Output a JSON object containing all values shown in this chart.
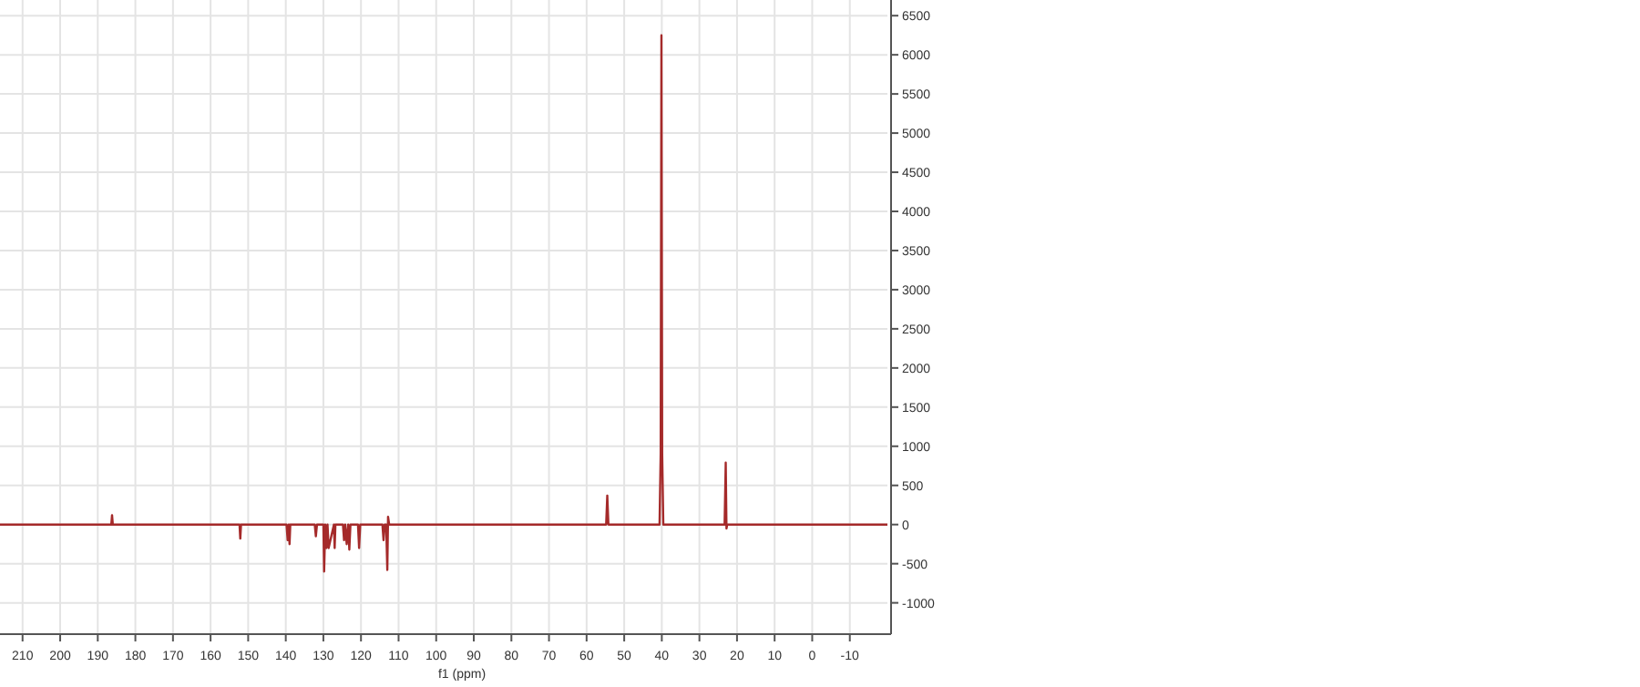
{
  "chart_data": {
    "type": "line",
    "xlabel": "f1 (ppm)",
    "xlim": [
      216,
      -20
    ],
    "ylim": [
      -1400,
      6700
    ],
    "xticks": [
      210,
      200,
      190,
      180,
      170,
      160,
      150,
      140,
      130,
      120,
      110,
      100,
      90,
      80,
      70,
      60,
      50,
      40,
      30,
      20,
      10,
      0,
      -10
    ],
    "yticks": [
      -1000,
      -500,
      0,
      500,
      1000,
      1500,
      2000,
      2500,
      3000,
      3500,
      4000,
      4500,
      5000,
      5500,
      6000,
      6500
    ],
    "grid": true,
    "marker": "none",
    "line_style": "solid",
    "series": [
      {
        "color": "#a52a2a",
        "x": [
          216,
          186.4,
          186.2,
          186.0,
          152.3,
          152.1,
          151.9,
          139.8,
          139.5,
          139.2,
          139.0,
          138.8,
          132.3,
          132.0,
          131.7,
          130.0,
          129.8,
          129.5,
          129.2,
          128.9,
          128.6,
          127.2,
          127.0,
          126.8,
          124.8,
          124.5,
          124.2,
          123.8,
          123.4,
          123.1,
          122.8,
          120.8,
          120.5,
          120.2,
          114.3,
          114.0,
          113.7,
          113.3,
          113.0,
          112.8,
          112.5,
          54.8,
          54.5,
          54.2,
          40.6,
          40.3,
          40.1,
          39.9,
          39.6,
          39.3,
          23.3,
          23.0,
          22.8,
          22.6,
          -20
        ],
        "values": [
          0,
          0,
          120,
          0,
          0,
          -180,
          0,
          0,
          -200,
          0,
          -250,
          0,
          0,
          -150,
          0,
          0,
          -600,
          0,
          -300,
          0,
          -300,
          0,
          -300,
          0,
          0,
          -200,
          0,
          -250,
          0,
          -320,
          0,
          0,
          -300,
          0,
          0,
          -200,
          0,
          0,
          -580,
          100,
          0,
          0,
          370,
          0,
          0,
          900,
          6250,
          900,
          0,
          0,
          0,
          790,
          -50,
          0,
          0
        ]
      }
    ]
  }
}
